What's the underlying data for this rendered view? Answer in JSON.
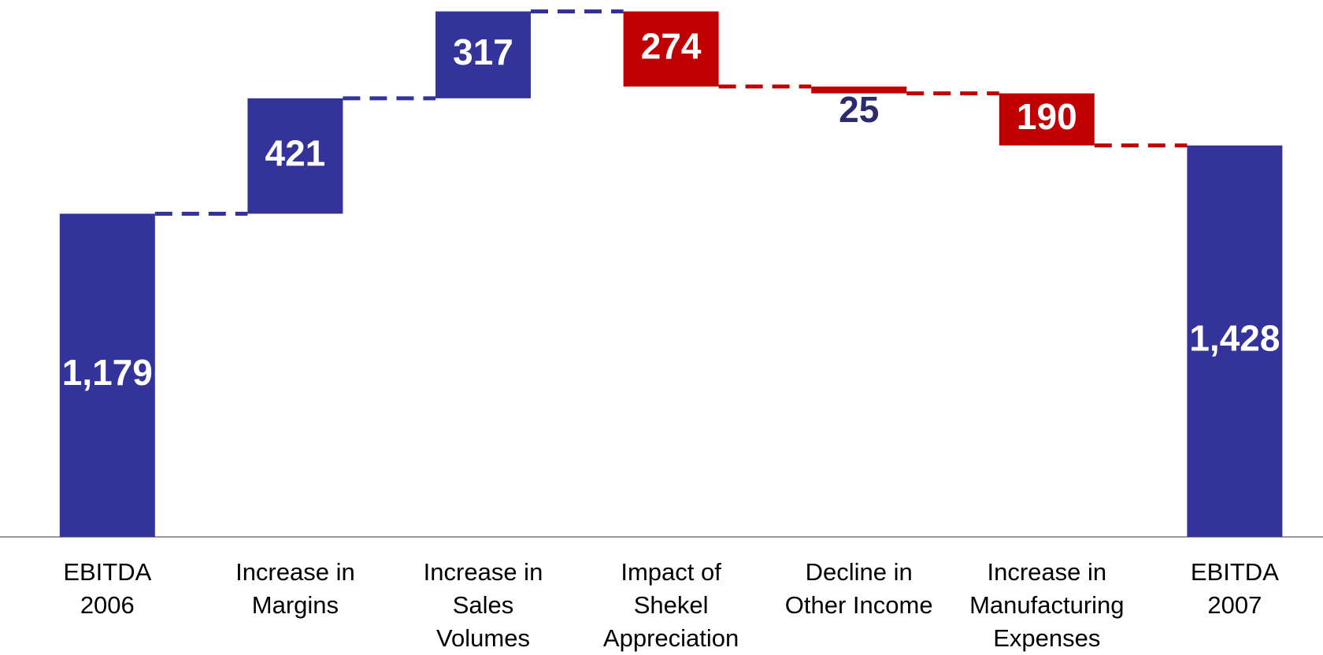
{
  "chart_data": {
    "type": "waterfall",
    "categories": [
      [
        "EBITDA",
        "2006"
      ],
      [
        "Increase in",
        "Margins"
      ],
      [
        "Increase in",
        "Sales",
        "Volumes"
      ],
      [
        "Impact of",
        "Shekel",
        "Appreciation"
      ],
      [
        "Decline in",
        "Other Income"
      ],
      [
        "Increase in",
        "Manufacturing",
        "Expenses"
      ],
      [
        "EBITDA",
        "2007"
      ]
    ],
    "values": [
      1179,
      421,
      317,
      -274,
      -25,
      -190,
      1428
    ],
    "value_labels": [
      "1,179",
      "421",
      "317",
      "274",
      "25",
      "190",
      "1,428"
    ],
    "measure": [
      "absolute",
      "relative",
      "relative",
      "relative",
      "relative",
      "relative",
      "total"
    ],
    "increase_color": "#333399",
    "decrease_color": "#c00000",
    "total_color": "#333399",
    "ylim": [
      0,
      1950
    ]
  }
}
